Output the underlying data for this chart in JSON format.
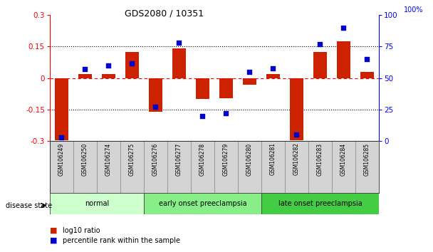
{
  "title": "GDS2080 / 10351",
  "samples": [
    "GSM106249",
    "GSM106250",
    "GSM106274",
    "GSM106275",
    "GSM106276",
    "GSM106277",
    "GSM106278",
    "GSM106279",
    "GSM106280",
    "GSM106281",
    "GSM106282",
    "GSM106283",
    "GSM106284",
    "GSM106285"
  ],
  "log10_ratio": [
    -0.295,
    0.02,
    0.02,
    0.125,
    -0.16,
    0.14,
    -0.1,
    -0.095,
    -0.03,
    0.02,
    -0.295,
    0.125,
    0.175,
    0.03
  ],
  "percentile_rank": [
    3,
    57,
    60,
    62,
    27,
    78,
    20,
    22,
    55,
    58,
    5,
    77,
    90,
    65
  ],
  "groups": [
    {
      "label": "normal",
      "start": 0,
      "end": 4,
      "color": "#ccffcc"
    },
    {
      "label": "early onset preeclampsia",
      "start": 4,
      "end": 9,
      "color": "#88ee88"
    },
    {
      "label": "late onset preeclampsia",
      "start": 9,
      "end": 14,
      "color": "#44cc44"
    }
  ],
  "bar_color": "#cc2200",
  "dot_color": "#0000cc",
  "ylim_left": [
    -0.3,
    0.3
  ],
  "ylim_right": [
    0,
    100
  ],
  "yticks_left": [
    -0.3,
    -0.15,
    0.0,
    0.15,
    0.3
  ],
  "yticks_right": [
    0,
    25,
    50,
    75,
    100
  ],
  "legend_bar_label": "log10 ratio",
  "legend_dot_label": "percentile rank within the sample",
  "disease_state_label": "disease state",
  "background_color": "#ffffff",
  "plot_bg_color": "#ffffff",
  "tick_label_bg": "#d8d8d8"
}
